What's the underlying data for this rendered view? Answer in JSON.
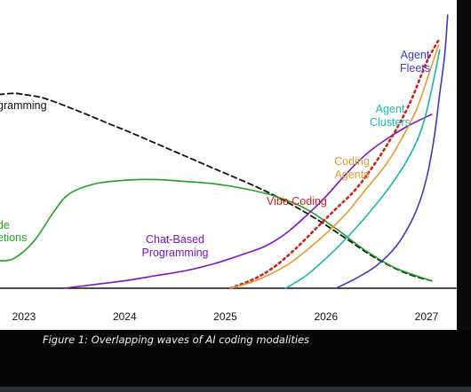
{
  "chart_data": {
    "type": "line",
    "title": "",
    "xlabel": "",
    "ylabel": "",
    "x_tick_labels": [
      "2023",
      "2024",
      "2025",
      "2026",
      "2027"
    ],
    "xlim": [
      2022.8,
      2027.2
    ],
    "ylim": [
      0,
      100
    ],
    "grid": false,
    "series": [
      {
        "name": "Traditional Programming",
        "label": "gramming",
        "label_lines": [
          "gramming"
        ],
        "color": "#111111",
        "dash": "dashed",
        "x": [
          2022.75,
          2022.9,
          2023.0,
          2023.2,
          2023.5,
          2023.8,
          2024.1,
          2024.5,
          2024.9,
          2025.3,
          2025.6,
          2025.9,
          2026.2,
          2026.5,
          2026.8,
          2027.05
        ],
        "y": [
          78,
          78.5,
          78,
          76.5,
          72,
          67,
          62,
          55,
          48,
          41,
          35,
          28,
          20,
          12,
          6,
          3
        ]
      },
      {
        "name": "Code Completions",
        "label": "de etions",
        "label_lines": [
          "de",
          "etions"
        ],
        "color": "#22a022",
        "dash": "solid",
        "x": [
          2022.75,
          2022.9,
          2023.1,
          2023.3,
          2023.45,
          2023.7,
          2024.0,
          2024.3,
          2024.6,
          2024.9,
          2025.2,
          2025.5,
          2025.8,
          2026.1,
          2026.4,
          2026.7,
          2027.05
        ],
        "y": [
          11,
          12,
          19,
          31,
          38,
          42,
          43.5,
          43.8,
          43,
          42,
          40,
          37,
          32,
          24,
          15,
          8,
          3
        ]
      },
      {
        "name": "Chat-Based Programming",
        "label": "Chat-Based Programming",
        "label_lines": [
          "Chat-Based",
          "Programming"
        ],
        "color": "#7a12c8",
        "dash": "solid",
        "x": [
          2023.4,
          2023.7,
          2024.0,
          2024.3,
          2024.6,
          2024.9,
          2025.2,
          2025.4,
          2025.6,
          2025.8,
          2026.0,
          2026.2,
          2026.4,
          2026.6,
          2026.8,
          2027.05
        ],
        "y": [
          0,
          1.5,
          3,
          5,
          7,
          10,
          14,
          17,
          22,
          29,
          37,
          46,
          54,
          60,
          65,
          70
        ]
      },
      {
        "name": "Vibe Coding",
        "label": "Vibe Coding",
        "label_lines": [
          "Vibe Coding"
        ],
        "color": "#d0201e",
        "dash": "dotted",
        "x": [
          2025.05,
          2025.3,
          2025.5,
          2025.7,
          2025.9,
          2026.1,
          2026.3,
          2026.5,
          2026.7,
          2026.85,
          2027.0,
          2027.12
        ],
        "y": [
          0,
          4,
          9,
          16,
          24,
          32,
          40,
          51,
          64,
          76,
          91,
          100
        ]
      },
      {
        "name": "Coding Agents",
        "label": "Coding Agents",
        "label_lines": [
          "Coding",
          "Agents"
        ],
        "color": "#e69a2e",
        "dash": "solid",
        "x": [
          2025.05,
          2025.3,
          2025.6,
          2025.8,
          2026.0,
          2026.2,
          2026.4,
          2026.6,
          2026.75,
          2026.9,
          2027.02,
          2027.12
        ],
        "y": [
          0,
          3,
          9,
          15,
          22,
          30,
          40,
          50,
          60,
          72,
          86,
          98
        ]
      },
      {
        "name": "Agent Clusters",
        "label": "Agent Clusters",
        "label_lines": [
          "Agent",
          "Clusters"
        ],
        "color": "#1ab8aa",
        "dash": "solid",
        "x": [
          2025.6,
          2025.8,
          2026.0,
          2026.2,
          2026.4,
          2026.6,
          2026.8,
          2026.95,
          2027.05,
          2027.13
        ],
        "y": [
          0,
          5,
          12,
          20,
          29,
          39,
          51,
          64,
          80,
          96
        ]
      },
      {
        "name": "Agent Fleets",
        "label": "Agent Fleets",
        "label_lines": [
          "Agent",
          "Fleets"
        ],
        "color": "#3a3ac4",
        "dash": "solid",
        "x": [
          2026.1,
          2026.3,
          2026.5,
          2026.7,
          2026.85,
          2026.95,
          2027.02,
          2027.08,
          2027.13,
          2027.18,
          2027.21
        ],
        "y": [
          0,
          4,
          9,
          17,
          27,
          37,
          48,
          62,
          78,
          94,
          110
        ]
      }
    ],
    "annotations": [
      "Figure 1: Overlapping waves of AI coding modalities"
    ]
  },
  "caption": {
    "text": "Figure 1: Overlapping waves of AI coding modalities"
  }
}
